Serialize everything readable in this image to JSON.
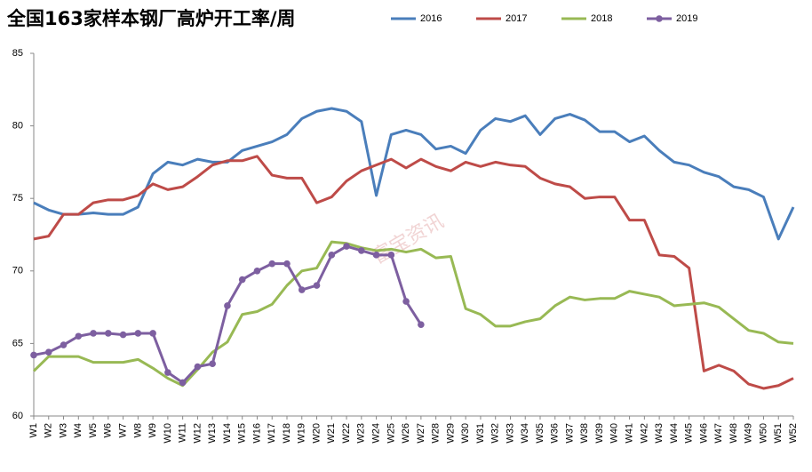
{
  "chart_data": {
    "type": "line",
    "title": "全国163家样本钢厂高炉开工率/周",
    "watermark": "富宝资讯",
    "categories": [
      "W1",
      "W2",
      "W3",
      "W4",
      "W5",
      "W6",
      "W7",
      "W8",
      "W9",
      "W10",
      "W11",
      "W12",
      "W13",
      "W14",
      "W15",
      "W16",
      "W17",
      "W18",
      "W19",
      "W20",
      "W21",
      "W22",
      "W23",
      "W24",
      "W25",
      "W26",
      "W27",
      "W28",
      "W29",
      "W30",
      "W31",
      "W32",
      "W33",
      "W34",
      "W35",
      "W36",
      "W37",
      "W38",
      "W39",
      "W40",
      "W41",
      "W42",
      "W43",
      "W44",
      "W45",
      "W46",
      "W47",
      "W48",
      "W49",
      "W50",
      "W51",
      "W52"
    ],
    "series": [
      {
        "name": "2016",
        "color": "#4a7ebb",
        "markers": false,
        "values": [
          74.7,
          74.2,
          73.9,
          73.9,
          74.0,
          73.9,
          73.9,
          74.4,
          76.7,
          77.5,
          77.3,
          77.7,
          77.5,
          77.5,
          78.3,
          78.6,
          78.9,
          79.4,
          80.5,
          81.0,
          81.2,
          81.0,
          80.3,
          75.2,
          79.4,
          79.7,
          79.4,
          78.4,
          78.6,
          78.1,
          79.7,
          80.5,
          80.3,
          80.7,
          79.4,
          80.5,
          80.8,
          80.4,
          79.6,
          79.6,
          78.9,
          79.3,
          78.3,
          77.5,
          77.3,
          76.8,
          76.5,
          75.8,
          75.6,
          75.1,
          72.2,
          74.4
        ]
      },
      {
        "name": "2017",
        "color": "#be4b48",
        "markers": false,
        "values": [
          72.2,
          72.4,
          73.9,
          73.9,
          74.7,
          74.9,
          74.9,
          75.2,
          76.0,
          75.6,
          75.8,
          76.5,
          77.3,
          77.6,
          77.6,
          77.9,
          76.6,
          76.4,
          76.4,
          74.7,
          75.1,
          76.2,
          76.9,
          77.3,
          77.7,
          77.1,
          77.7,
          77.2,
          76.9,
          77.5,
          77.2,
          77.5,
          77.3,
          77.2,
          76.4,
          76.0,
          75.8,
          75.0,
          75.1,
          75.1,
          73.5,
          73.5,
          71.1,
          71.0,
          70.2,
          63.1,
          63.5,
          63.1,
          62.2,
          61.9,
          62.1,
          62.6
        ]
      },
      {
        "name": "2018",
        "color": "#98b954",
        "markers": false,
        "values": [
          63.1,
          64.1,
          64.1,
          64.1,
          63.7,
          63.7,
          63.7,
          63.9,
          63.3,
          62.6,
          62.1,
          63.2,
          64.4,
          65.1,
          67.0,
          67.2,
          67.7,
          69.0,
          70.0,
          70.2,
          72.0,
          71.9,
          71.6,
          71.4,
          71.5,
          71.3,
          71.5,
          70.9,
          71.0,
          67.4,
          67.0,
          66.2,
          66.2,
          66.5,
          66.7,
          67.6,
          68.2,
          68.0,
          68.1,
          68.1,
          68.6,
          68.4,
          68.2,
          67.6,
          67.7,
          67.8,
          67.5,
          66.7,
          65.9,
          65.7,
          65.1,
          65.0
        ]
      },
      {
        "name": "2019",
        "color": "#7d5fa0",
        "markers": true,
        "values": [
          64.2,
          64.4,
          64.9,
          65.5,
          65.7,
          65.7,
          65.6,
          65.7,
          65.7,
          63.0,
          62.3,
          63.4,
          63.6,
          67.6,
          69.4,
          70.0,
          70.5,
          70.5,
          68.7,
          69.0,
          71.1,
          71.7,
          71.4,
          71.1,
          71.1,
          67.9,
          66.3,
          null,
          null,
          null,
          null,
          null,
          null,
          null,
          null,
          null,
          null,
          null,
          null,
          null,
          null,
          null,
          null,
          null,
          null,
          null,
          null,
          null,
          null,
          null,
          null,
          null
        ]
      }
    ],
    "ylim": [
      60,
      85
    ],
    "yticks": [
      60,
      65,
      70,
      75,
      80,
      85
    ],
    "grid": false,
    "legend": "top-right"
  }
}
